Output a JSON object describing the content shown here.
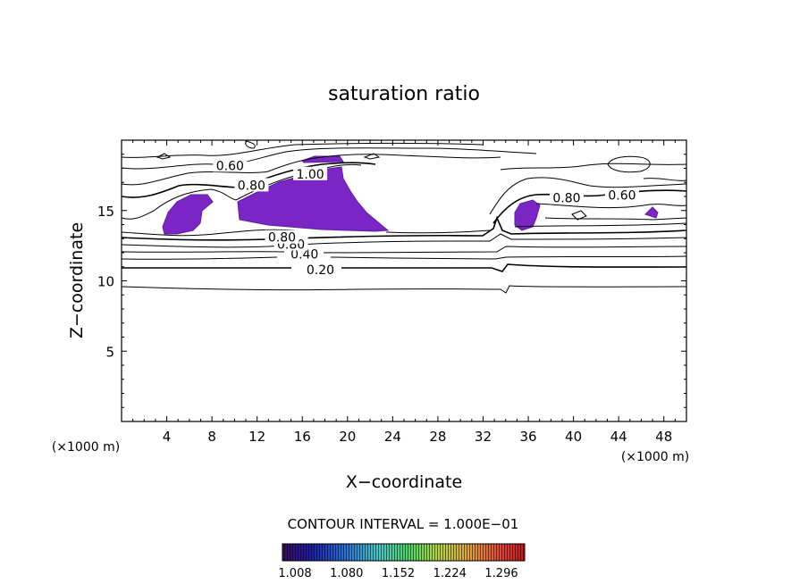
{
  "chart_data": {
    "type": "contour",
    "title": "saturation ratio",
    "xlabel": "X−coordinate",
    "ylabel": "Z−coordinate",
    "x_unit": "(×1000 m)",
    "z_unit": "(×1000 m)",
    "xlim": [
      0,
      50
    ],
    "ylim": [
      0,
      20
    ],
    "xticks": [
      4,
      8,
      12,
      16,
      20,
      24,
      28,
      32,
      36,
      40,
      44,
      48
    ],
    "yticks": [
      5,
      10,
      15
    ],
    "contour_interval_text": "CONTOUR INTERVAL = 1.000E−01",
    "contour_labels": [
      {
        "text": "0.20",
        "x": 17.6,
        "z": 10.8
      },
      {
        "text": "0.40",
        "x": 16.2,
        "z": 11.9
      },
      {
        "text": "0.80",
        "x": 15.0,
        "z": 12.6
      },
      {
        "text": "0.80",
        "x": 14.2,
        "z": 13.1
      },
      {
        "text": "0.80",
        "x": 11.5,
        "z": 16.8
      },
      {
        "text": "0.60",
        "x": 9.6,
        "z": 18.2
      },
      {
        "text": "1.00",
        "x": 16.7,
        "z": 17.6
      },
      {
        "text": "0.80",
        "x": 39.4,
        "z": 15.9
      },
      {
        "text": "0.60",
        "x": 44.3,
        "z": 16.1
      }
    ],
    "shaded_regions_min": 1.0,
    "colorbar": {
      "ticks": [
        "1.008",
        "1.080",
        "1.152",
        "1.224",
        "1.296"
      ],
      "colors": [
        "#3a0f5e",
        "#1d1ea8",
        "#2a78d8",
        "#4cc7c1",
        "#4fd36a",
        "#b4d640",
        "#e0a23a",
        "#e0463a",
        "#c0181a"
      ]
    },
    "fill_color": "#7b25c4",
    "fill_color_dark": "#5a1ea4"
  }
}
